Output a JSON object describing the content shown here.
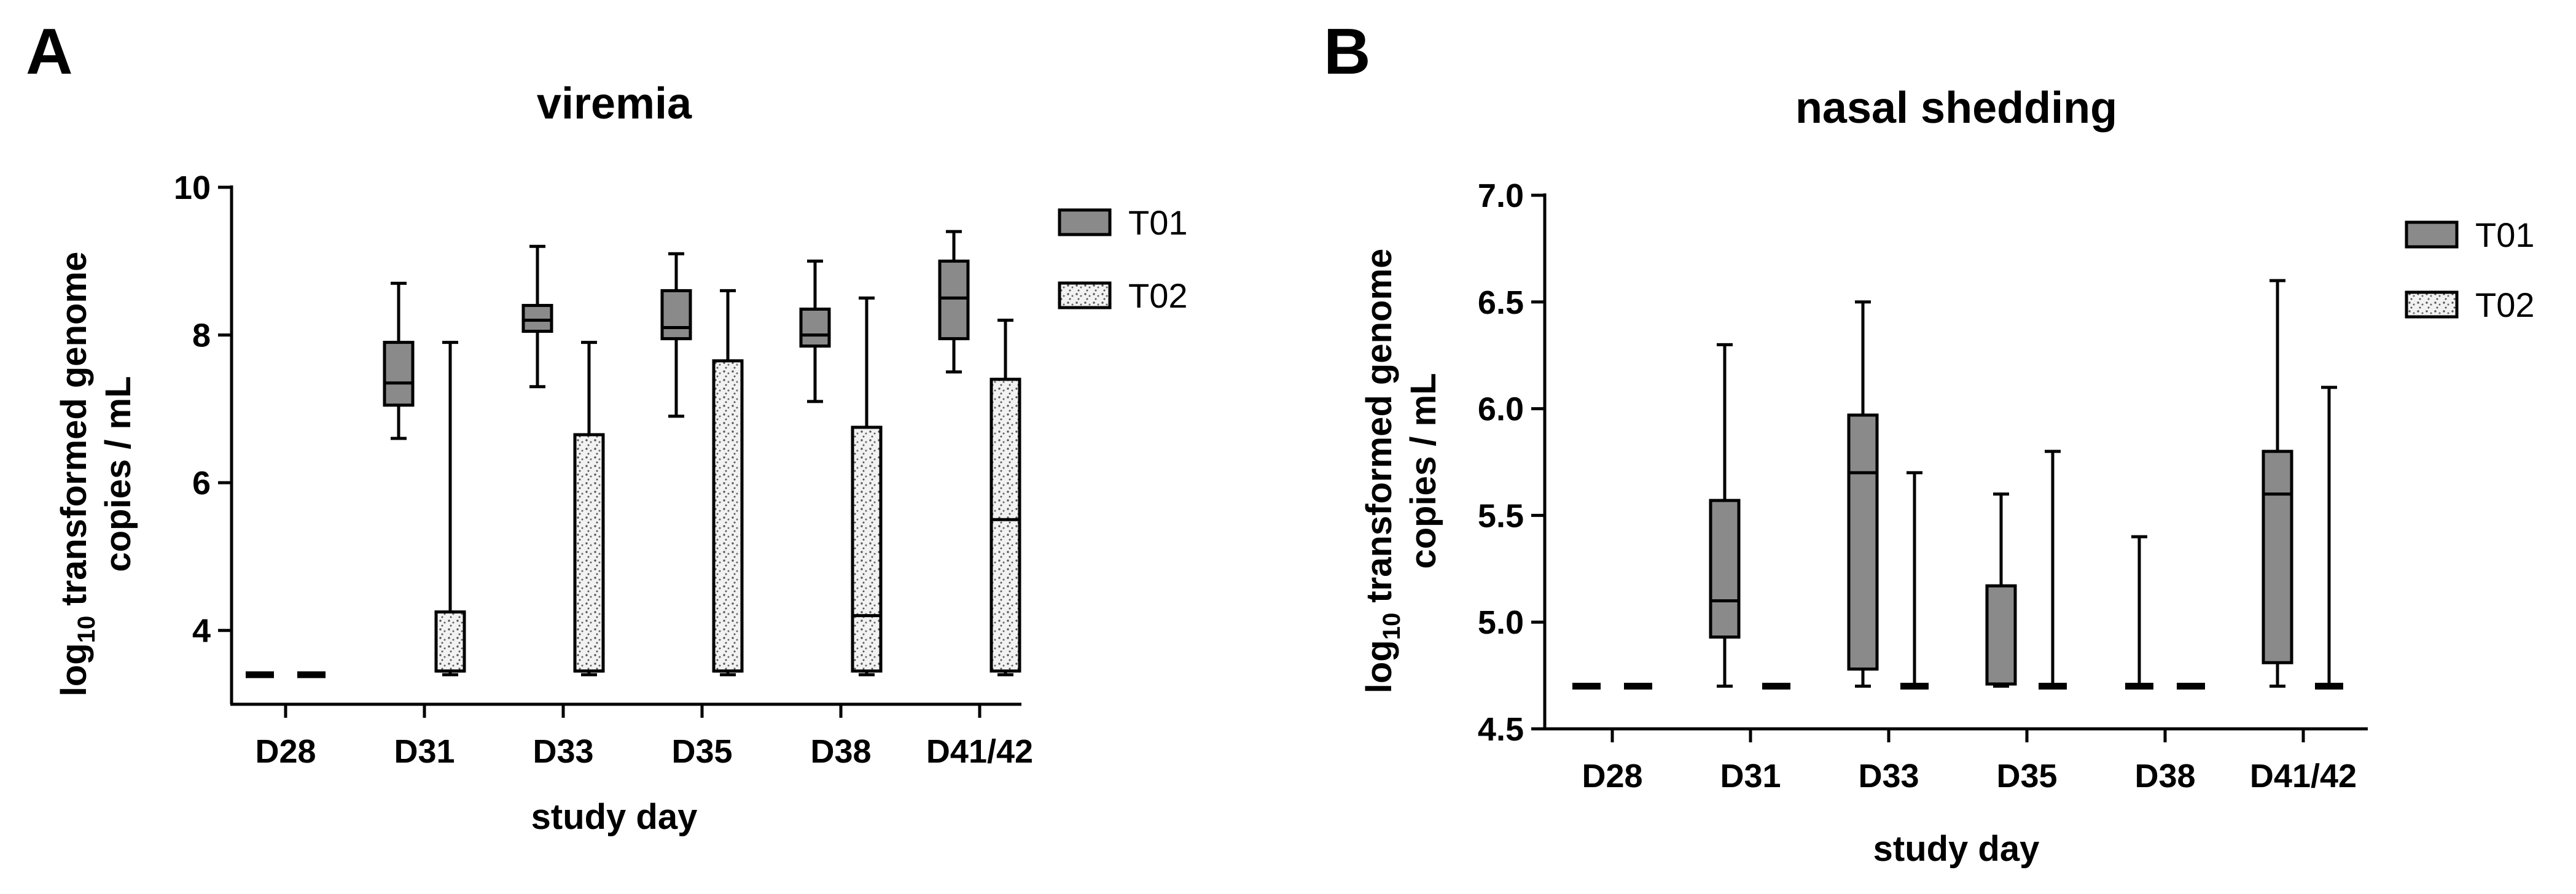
{
  "figure_labels": [
    "A",
    "B"
  ],
  "colors": {
    "t01_fill": "#8a8a8a",
    "t02_fill": "#f2f2f2",
    "t02_dot": "#555555",
    "ink": "#000000"
  },
  "chart_data": [
    {
      "type": "box",
      "panel": "A",
      "title": "viremia",
      "xlabel": "study day",
      "ylabel_prefix": "log",
      "ylabel_subscript": "10",
      "ylabel_line1": " transformed genome",
      "ylabel_line2": "copies / mL",
      "categories": [
        "D28",
        "D31",
        "D33",
        "D35",
        "D38",
        "D41/42"
      ],
      "ylim": [
        3,
        10
      ],
      "yticks": [
        4,
        6,
        8,
        10
      ],
      "ytick_labels": [
        "4",
        "6",
        "8",
        "10"
      ],
      "legend": {
        "position": "right",
        "entries": [
          "T01",
          "T02"
        ]
      },
      "series": [
        {
          "name": "T01",
          "boxes": [
            {
              "min": 3.4,
              "q1": 3.4,
              "median": 3.4,
              "q3": 3.4,
              "max": 3.4
            },
            {
              "min": 6.6,
              "q1": 7.05,
              "median": 7.35,
              "q3": 7.9,
              "max": 8.7
            },
            {
              "min": 7.3,
              "q1": 8.05,
              "median": 8.2,
              "q3": 8.4,
              "max": 9.2
            },
            {
              "min": 6.9,
              "q1": 7.95,
              "median": 8.1,
              "q3": 8.6,
              "max": 9.1
            },
            {
              "min": 7.1,
              "q1": 7.85,
              "median": 8.0,
              "q3": 8.35,
              "max": 9.0
            },
            {
              "min": 7.5,
              "q1": 7.95,
              "median": 8.5,
              "q3": 9.0,
              "max": 9.4
            }
          ]
        },
        {
          "name": "T02",
          "boxes": [
            {
              "min": 3.4,
              "q1": 3.4,
              "median": 3.4,
              "q3": 3.4,
              "max": 3.4
            },
            {
              "min": 3.4,
              "q1": 3.45,
              "median": 3.45,
              "q3": 4.25,
              "max": 7.9
            },
            {
              "min": 3.4,
              "q1": 3.45,
              "median": 3.45,
              "q3": 6.65,
              "max": 7.9
            },
            {
              "min": 3.4,
              "q1": 3.45,
              "median": 3.45,
              "q3": 7.65,
              "max": 8.6
            },
            {
              "min": 3.4,
              "q1": 3.45,
              "median": 4.2,
              "q3": 6.75,
              "max": 8.5
            },
            {
              "min": 3.4,
              "q1": 3.45,
              "median": 5.5,
              "q3": 7.4,
              "max": 8.2
            }
          ]
        }
      ]
    },
    {
      "type": "box",
      "panel": "B",
      "title": "nasal shedding",
      "xlabel": "study day",
      "ylabel_prefix": "log",
      "ylabel_subscript": "10",
      "ylabel_line1": " transformed genome",
      "ylabel_line2": "copies / mL",
      "categories": [
        "D28",
        "D31",
        "D33",
        "D35",
        "D38",
        "D41/42"
      ],
      "ylim": [
        4.5,
        7.0
      ],
      "yticks": [
        4.5,
        5.0,
        5.5,
        6.0,
        6.5,
        7.0
      ],
      "ytick_labels": [
        "4.5",
        "5.0",
        "5.5",
        "6.0",
        "6.5",
        "7.0"
      ],
      "legend": {
        "position": "right",
        "entries": [
          "T01",
          "T02"
        ]
      },
      "series": [
        {
          "name": "T01",
          "boxes": [
            {
              "min": 4.7,
              "q1": 4.7,
              "median": 4.7,
              "q3": 4.7,
              "max": 4.7
            },
            {
              "min": 4.7,
              "q1": 4.93,
              "median": 5.1,
              "q3": 5.57,
              "max": 6.3
            },
            {
              "min": 4.7,
              "q1": 4.78,
              "median": 5.7,
              "q3": 5.97,
              "max": 6.5
            },
            {
              "min": 4.7,
              "q1": 4.71,
              "median": 4.71,
              "q3": 5.17,
              "max": 5.6
            },
            {
              "min": 4.7,
              "q1": 4.7,
              "median": 4.7,
              "q3": 4.7,
              "max": 5.4
            },
            {
              "min": 4.7,
              "q1": 4.81,
              "median": 5.6,
              "q3": 5.8,
              "max": 6.6
            }
          ]
        },
        {
          "name": "T02",
          "boxes": [
            {
              "min": 4.7,
              "q1": 4.7,
              "median": 4.7,
              "q3": 4.7,
              "max": 4.7
            },
            {
              "min": 4.7,
              "q1": 4.7,
              "median": 4.7,
              "q3": 4.7,
              "max": 4.7
            },
            {
              "min": 4.7,
              "q1": 4.7,
              "median": 4.7,
              "q3": 4.7,
              "max": 5.7
            },
            {
              "min": 4.7,
              "q1": 4.7,
              "median": 4.7,
              "q3": 4.7,
              "max": 5.8
            },
            {
              "min": 4.7,
              "q1": 4.7,
              "median": 4.7,
              "q3": 4.7,
              "max": 4.7
            },
            {
              "min": 4.7,
              "q1": 4.7,
              "median": 4.7,
              "q3": 4.7,
              "max": 6.1
            }
          ]
        }
      ]
    }
  ]
}
